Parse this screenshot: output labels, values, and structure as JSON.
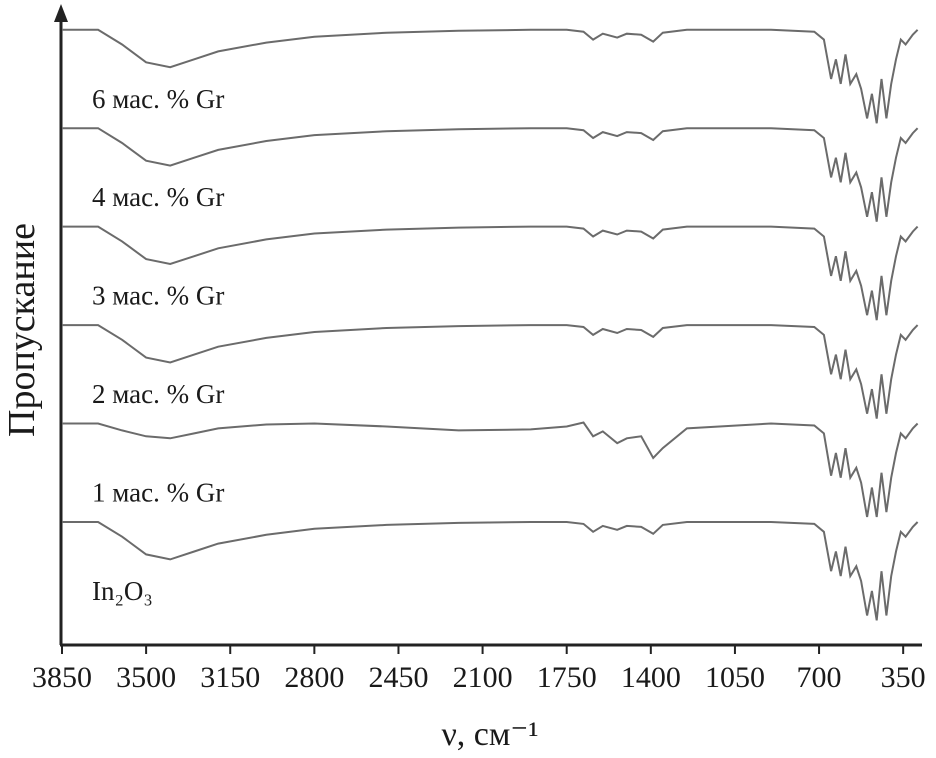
{
  "chart_data": {
    "type": "line",
    "x_label": "ν, см⁻¹",
    "y_label": "Пропускание",
    "xlim": [
      3850,
      280
    ],
    "ylim": [
      0,
      6.4
    ],
    "xticks": [
      3850,
      3500,
      3150,
      2800,
      2450,
      2100,
      1750,
      1400,
      1050,
      700,
      350
    ],
    "x": [
      3850,
      3700,
      3600,
      3500,
      3400,
      3300,
      3200,
      3000,
      2800,
      2500,
      2200,
      1900,
      1750,
      1680,
      1640,
      1600,
      1540,
      1500,
      1440,
      1390,
      1350,
      1250,
      900,
      720,
      680,
      650,
      630,
      610,
      590,
      570,
      545,
      525,
      500,
      480,
      460,
      440,
      420,
      400,
      380,
      360,
      340,
      310,
      290
    ],
    "series": [
      {
        "name": "6 мас. % Gr",
        "color": "#6b6b6b",
        "values": [
          6.25,
          6.25,
          6.1,
          5.92,
          5.87,
          5.95,
          6.03,
          6.12,
          6.18,
          6.22,
          6.24,
          6.25,
          6.25,
          6.23,
          6.15,
          6.21,
          6.17,
          6.21,
          6.2,
          6.13,
          6.22,
          6.25,
          6.25,
          6.23,
          6.15,
          5.75,
          5.95,
          5.7,
          6.0,
          5.7,
          5.8,
          5.65,
          5.35,
          5.6,
          5.3,
          5.75,
          5.35,
          5.7,
          5.95,
          6.15,
          6.1,
          6.2,
          6.25
        ]
      },
      {
        "name": "4 мас. % Gr",
        "color": "#6b6b6b",
        "values": [
          5.25,
          5.25,
          5.1,
          4.92,
          4.87,
          4.95,
          5.03,
          5.12,
          5.18,
          5.22,
          5.24,
          5.25,
          5.25,
          5.23,
          5.15,
          5.21,
          5.17,
          5.21,
          5.2,
          5.13,
          5.22,
          5.25,
          5.25,
          5.23,
          5.15,
          4.75,
          4.95,
          4.7,
          5.0,
          4.7,
          4.8,
          4.65,
          4.35,
          4.6,
          4.3,
          4.75,
          4.35,
          4.7,
          4.95,
          5.15,
          5.1,
          5.2,
          5.25
        ]
      },
      {
        "name": "3 мас. % Gr",
        "color": "#6b6b6b",
        "values": [
          4.25,
          4.25,
          4.1,
          3.92,
          3.87,
          3.95,
          4.03,
          4.12,
          4.18,
          4.22,
          4.24,
          4.25,
          4.25,
          4.23,
          4.15,
          4.21,
          4.17,
          4.21,
          4.2,
          4.13,
          4.22,
          4.25,
          4.25,
          4.23,
          4.15,
          3.75,
          3.95,
          3.7,
          4.0,
          3.7,
          3.8,
          3.65,
          3.35,
          3.6,
          3.3,
          3.75,
          3.35,
          3.7,
          3.95,
          4.15,
          4.1,
          4.2,
          4.25
        ]
      },
      {
        "name": "2 мас. % Gr",
        "color": "#6b6b6b",
        "values": [
          3.25,
          3.25,
          3.1,
          2.92,
          2.87,
          2.95,
          3.03,
          3.12,
          3.18,
          3.22,
          3.24,
          3.25,
          3.25,
          3.23,
          3.15,
          3.21,
          3.17,
          3.21,
          3.2,
          3.13,
          3.22,
          3.25,
          3.25,
          3.23,
          3.15,
          2.75,
          2.95,
          2.7,
          3.0,
          2.7,
          2.8,
          2.65,
          2.35,
          2.6,
          2.3,
          2.75,
          2.35,
          2.7,
          2.95,
          3.15,
          3.1,
          3.2,
          3.25
        ]
      },
      {
        "name": "1 мас. % Gr",
        "color": "#6b6b6b",
        "values": [
          2.25,
          2.25,
          2.18,
          2.12,
          2.1,
          2.15,
          2.2,
          2.24,
          2.25,
          2.22,
          2.18,
          2.19,
          2.22,
          2.26,
          2.12,
          2.17,
          2.05,
          2.1,
          2.12,
          1.9,
          2.0,
          2.2,
          2.25,
          2.23,
          2.15,
          1.72,
          1.95,
          1.7,
          2.0,
          1.7,
          1.8,
          1.65,
          1.3,
          1.6,
          1.3,
          1.75,
          1.35,
          1.7,
          1.95,
          2.15,
          2.1,
          2.2,
          2.25
        ]
      },
      {
        "name": "In₂O₃",
        "color": "#6b6b6b",
        "values": [
          1.25,
          1.25,
          1.1,
          0.92,
          0.87,
          0.95,
          1.03,
          1.12,
          1.18,
          1.22,
          1.24,
          1.25,
          1.25,
          1.23,
          1.15,
          1.21,
          1.17,
          1.21,
          1.2,
          1.13,
          1.22,
          1.25,
          1.25,
          1.23,
          1.15,
          0.75,
          0.95,
          0.7,
          1.0,
          0.7,
          0.8,
          0.65,
          0.3,
          0.55,
          0.25,
          0.75,
          0.3,
          0.7,
          0.95,
          1.15,
          1.1,
          1.2,
          1.25
        ]
      }
    ]
  }
}
